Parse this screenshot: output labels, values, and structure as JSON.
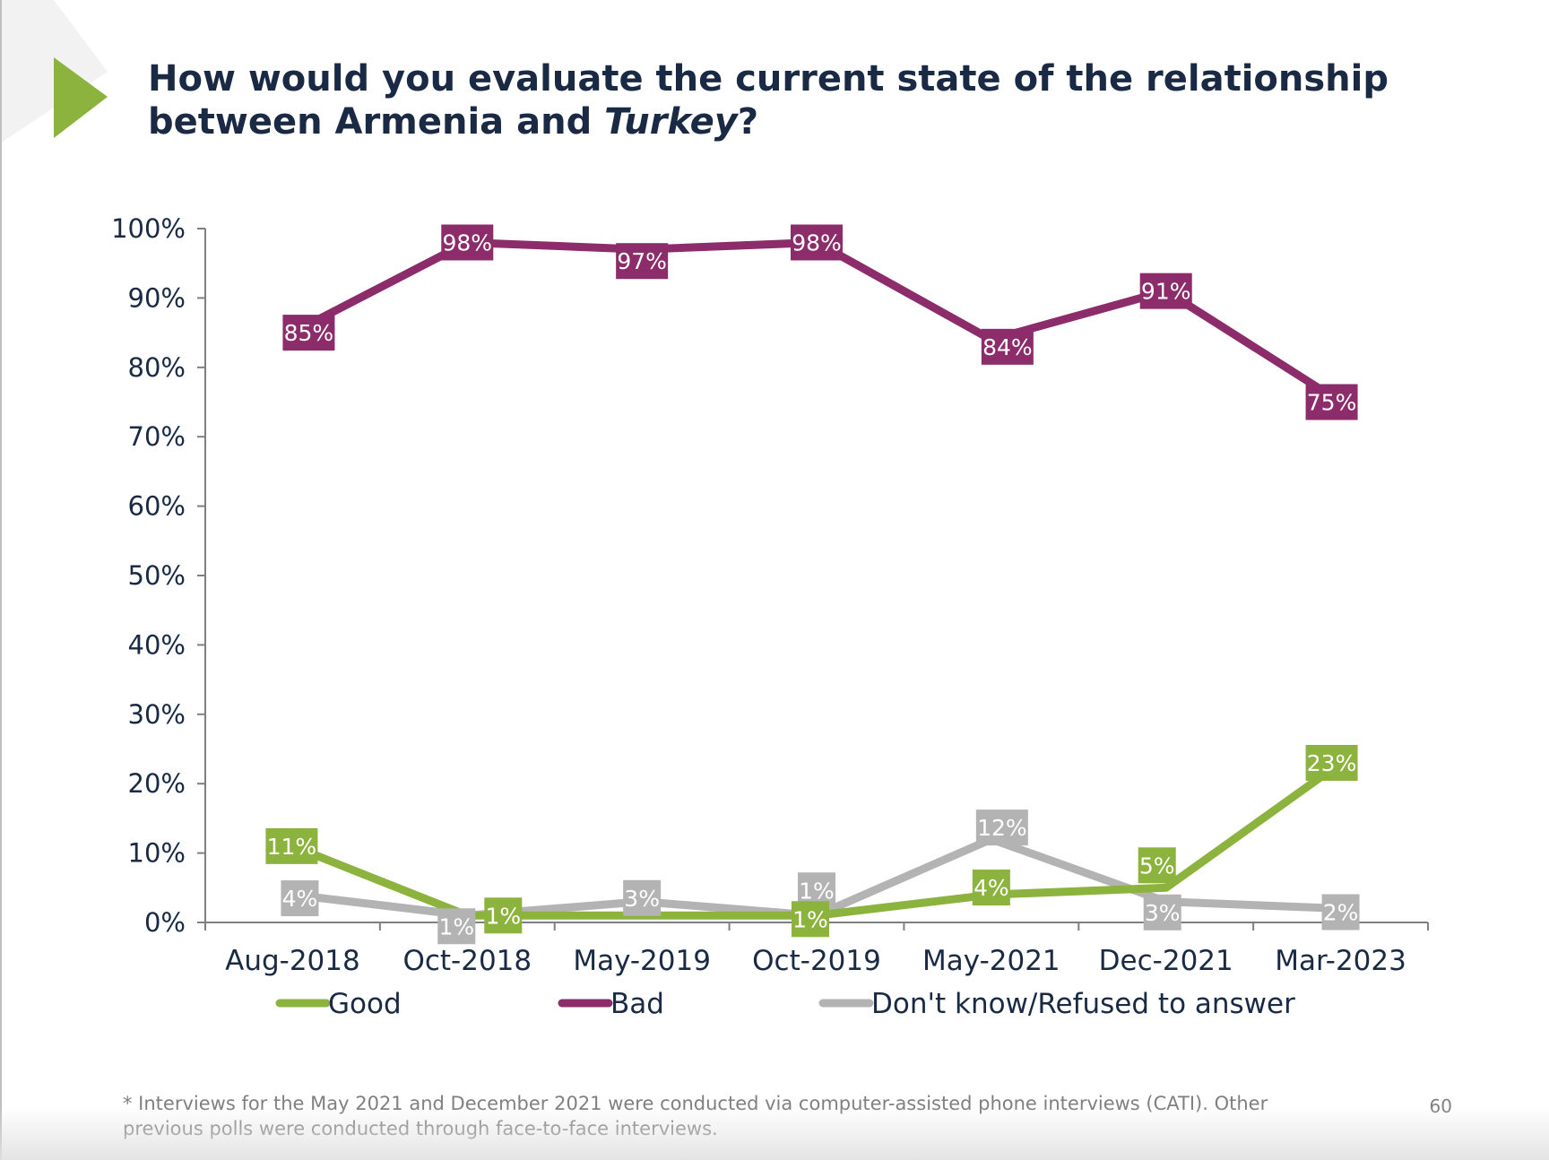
{
  "slide": {
    "title_part1": "How would you evaluate the current state of the relationship between Armenia and ",
    "title_emphasis": "Turkey",
    "title_part2": "?",
    "footnote": "* Interviews for the May 2021 and  December 2021 were conducted via computer-assisted phone interviews (CATI). Other previous polls were conducted through face-to-face interviews.",
    "page_number": "60",
    "accent_color": "#8cb33e"
  },
  "chart_data": {
    "type": "line",
    "categories": [
      "Aug-2018",
      "Oct-2018",
      "May-2019",
      "Oct-2019",
      "May-2021",
      "Dec-2021",
      "Mar-2023"
    ],
    "y_ticks": [
      "0%",
      "10%",
      "20%",
      "30%",
      "40%",
      "50%",
      "60%",
      "70%",
      "80%",
      "90%",
      "100%"
    ],
    "ylim": [
      0,
      100
    ],
    "grid": false,
    "legend_position": "bottom",
    "series": [
      {
        "name": "Good",
        "color": "#8cb33e",
        "values": [
          11,
          1,
          null,
          1,
          4,
          5,
          23
        ],
        "labels": [
          "11%",
          "1%",
          null,
          "1%",
          "4%",
          "5%",
          "23%"
        ]
      },
      {
        "name": "Bad",
        "color": "#8c2c6a",
        "values": [
          85,
          98,
          97,
          98,
          84,
          91,
          75
        ],
        "labels": [
          "85%",
          "98%",
          "97%",
          "98%",
          "84%",
          "91%",
          "75%"
        ]
      },
      {
        "name": "Don't know/Refused to answer",
        "color": "#b3b3b3",
        "values": [
          4,
          1,
          3,
          1,
          12,
          3,
          2
        ],
        "labels": [
          "4%",
          "1%",
          "3%",
          "1%",
          "12%",
          "3%",
          "2%"
        ]
      }
    ]
  }
}
